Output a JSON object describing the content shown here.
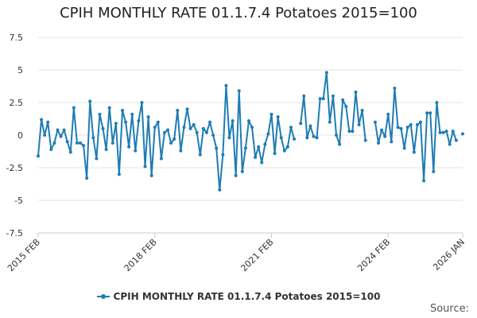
{
  "colors": {
    "series": "#1f7cb4",
    "grid": "#e3e3e3",
    "axis": "#cccccc",
    "text": "#333333"
  },
  "source_label": "Source:",
  "chart_data": {
    "type": "line",
    "title": "CPIH MONTHLY RATE 01.1.7.4 Potatoes 2015=100",
    "xlabel": "",
    "ylabel": "",
    "ylim": [
      -7.5,
      7.5
    ],
    "yticks": [
      7.5,
      5,
      2.5,
      0,
      -2.5,
      -5,
      -7.5
    ],
    "ytick_labels": [
      "7.5",
      "5",
      "2.5",
      "0",
      "-2.5",
      "-5",
      "-7.5"
    ],
    "x_start": "2015-02",
    "x_end": "2026-01",
    "xticks": [
      {
        "month": "2015-02",
        "label": "2015 FEB"
      },
      {
        "month": "2018-02",
        "label": "2018 FEB"
      },
      {
        "month": "2021-02",
        "label": "2021 FEB"
      },
      {
        "month": "2024-02",
        "label": "2024 FEB"
      },
      {
        "month": "2026-01",
        "label": "2026 JAN"
      }
    ],
    "grid": true,
    "legend": "bottom",
    "series": [
      {
        "name": "CPIH MONTHLY RATE 01.1.7.4 Potatoes 2015=100",
        "values": [
          -1.6,
          1.2,
          0.0,
          1.0,
          -1.1,
          -0.6,
          0.4,
          -0.1,
          0.4,
          -0.5,
          -1.3,
          2.1,
          -0.6,
          -0.6,
          -0.8,
          -3.3,
          2.6,
          -0.2,
          -1.8,
          1.6,
          0.5,
          -1.1,
          2.1,
          -0.6,
          0.9,
          -3.0,
          1.9,
          1.0,
          -0.9,
          1.6,
          -1.2,
          1.1,
          2.5,
          -2.4,
          1.4,
          -3.1,
          0.6,
          1.0,
          -1.8,
          0.2,
          0.4,
          -0.6,
          -0.3,
          1.9,
          -1.2,
          0.6,
          2.0,
          0.5,
          0.8,
          0.2,
          -1.5,
          0.5,
          0.2,
          1.0,
          0.0,
          -1.0,
          -4.2,
          -1.5,
          3.8,
          -0.2,
          1.1,
          -3.1,
          3.4,
          -2.8,
          -1.0,
          1.1,
          0.6,
          -1.7,
          -0.9,
          -2.1,
          -0.7,
          0.1,
          1.6,
          -1.4,
          1.4,
          -0.2,
          -1.2,
          -0.9,
          0.6,
          -0.3,
          null,
          0.9,
          3.0,
          -0.2,
          0.7,
          -0.1,
          -0.2,
          2.8,
          2.8,
          4.8,
          1.0,
          3.0,
          0.0,
          -0.7,
          2.7,
          2.2,
          0.3,
          0.3,
          3.3,
          0.8,
          1.9,
          -0.4,
          null,
          null,
          1.0,
          -0.6,
          0.4,
          -0.1,
          1.6,
          -0.5,
          3.6,
          0.6,
          0.5,
          -1.0,
          0.6,
          0.8,
          -1.3,
          0.8,
          1.0,
          -3.5,
          1.7,
          1.7,
          -2.8,
          2.5,
          0.2,
          0.2,
          0.3,
          -0.7,
          0.3,
          -0.4,
          null,
          0.1
        ]
      }
    ]
  }
}
